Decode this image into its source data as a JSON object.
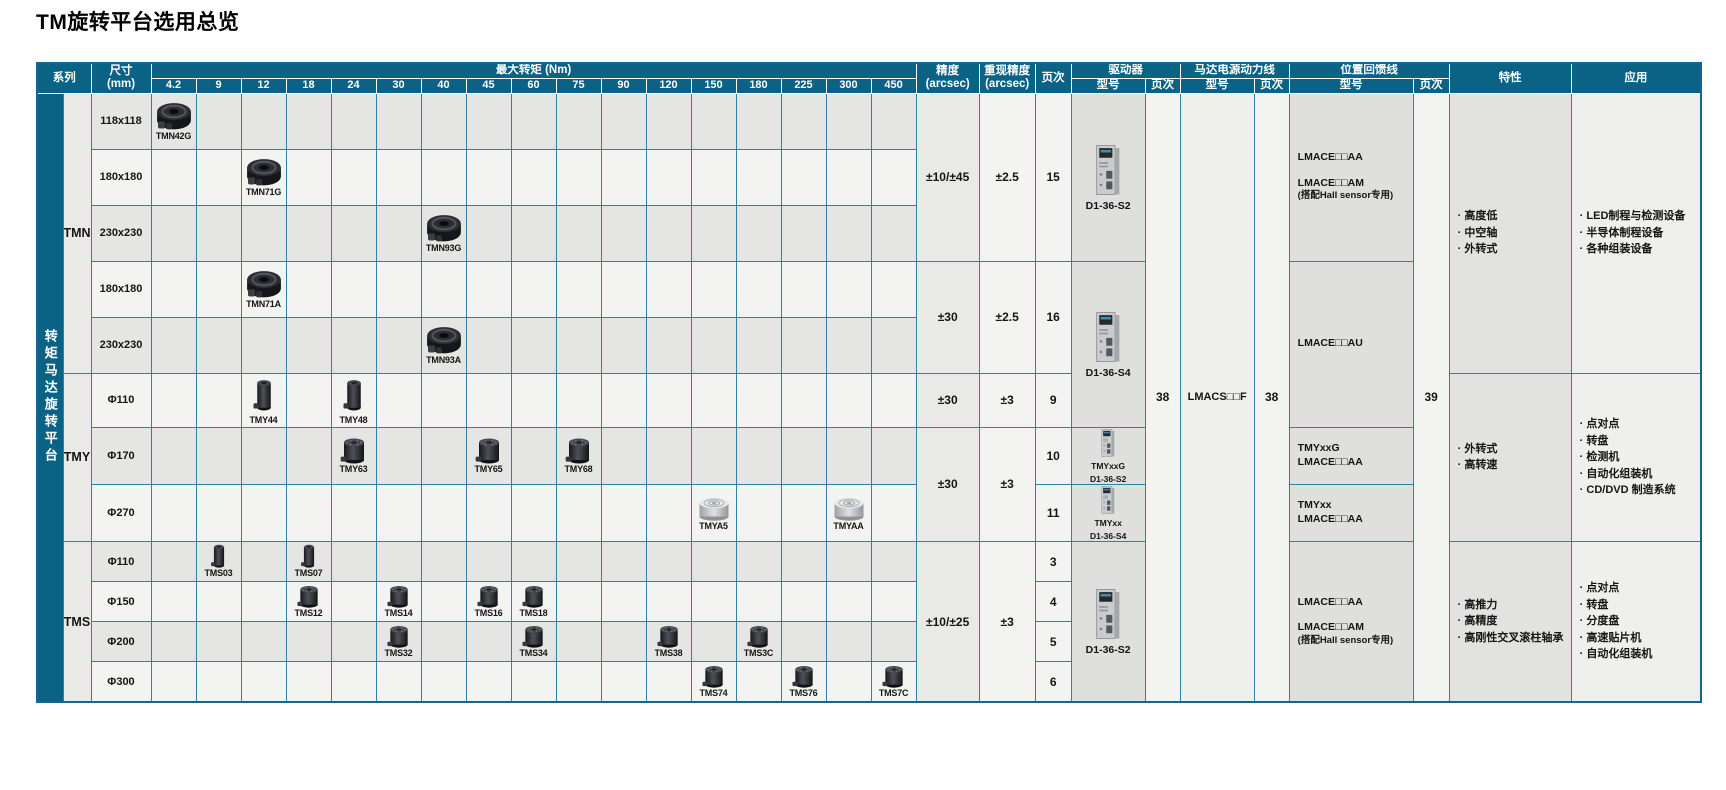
{
  "page": {
    "title": "TM旋转平台选用总览"
  },
  "colors": {
    "header_bg": "#0a6285",
    "grid_line": "#3181a6",
    "side_bar": "#0a6285"
  },
  "header": {
    "series": "系列",
    "size": "尺寸\n(mm)",
    "torque_title": "最大转矩 (Nm)",
    "torque_cols": [
      "4.2",
      "9",
      "12",
      "18",
      "24",
      "30",
      "40",
      "45",
      "60",
      "75",
      "90",
      "120",
      "150",
      "180",
      "225",
      "300",
      "450"
    ],
    "accuracy": "精度\n(arcsec)",
    "repeatability": "重现精度\n(arcsec)",
    "page_col": "页次",
    "driver": "驱动器",
    "motor_cable": "马达电源动力线",
    "feedback_cable": "位置回馈线",
    "model_col": "型号",
    "features": "特性",
    "applications": "应用"
  },
  "side_label": "转矩马达旋转平台",
  "series_labels": {
    "tmn": "TMN",
    "tmy": "TMY",
    "tms": "TMS"
  },
  "rows": [
    {
      "size": "118x118",
      "products": [
        {
          "label": "TMN42G",
          "col": "4.2",
          "type": "flat-platform"
        }
      ]
    },
    {
      "size": "180x180",
      "products": [
        {
          "label": "TMN71G",
          "col": "12",
          "type": "flat-platform"
        }
      ]
    },
    {
      "size": "230x230",
      "products": [
        {
          "label": "TMN93G",
          "col": "40",
          "type": "flat-platform"
        }
      ]
    },
    {
      "size": "180x180",
      "products": [
        {
          "label": "TMN71A",
          "col": "12",
          "type": "flat-platform"
        }
      ]
    },
    {
      "size": "230x230",
      "products": [
        {
          "label": "TMN93A",
          "col": "40",
          "type": "flat-platform"
        }
      ]
    },
    {
      "size": "Φ110",
      "products": [
        {
          "label": "TMY44",
          "col": "12",
          "type": "cylinder-tall"
        },
        {
          "label": "TMY48",
          "col": "24",
          "type": "cylinder-tall"
        }
      ]
    },
    {
      "size": "Φ170",
      "products": [
        {
          "label": "TMY63",
          "col": "24",
          "type": "cylinder-short"
        },
        {
          "label": "TMY65",
          "col": "45",
          "type": "cylinder-short"
        },
        {
          "label": "TMY68",
          "col": "75",
          "type": "cylinder-short"
        }
      ]
    },
    {
      "size": "Φ270",
      "products": [
        {
          "label": "TMYA5",
          "col": "150",
          "type": "cylinder-flat"
        },
        {
          "label": "TMYAA",
          "col": "300",
          "type": "cylinder-flat"
        }
      ]
    },
    {
      "size": "Φ110",
      "products": [
        {
          "label": "TMS03",
          "col": "9",
          "type": "cylinder-tall"
        },
        {
          "label": "TMS07",
          "col": "18",
          "type": "cylinder-tall"
        }
      ]
    },
    {
      "size": "Φ150",
      "products": [
        {
          "label": "TMS12",
          "col": "18",
          "type": "cylinder-short"
        },
        {
          "label": "TMS14",
          "col": "30",
          "type": "cylinder-short"
        },
        {
          "label": "TMS16",
          "col": "45",
          "type": "cylinder-short"
        },
        {
          "label": "TMS18",
          "col": "60",
          "type": "cylinder-short"
        }
      ]
    },
    {
      "size": "Φ200",
      "products": [
        {
          "label": "TMS32",
          "col": "30",
          "type": "cylinder-short"
        },
        {
          "label": "TMS34",
          "col": "60",
          "type": "cylinder-short"
        },
        {
          "label": "TMS38",
          "col": "120",
          "type": "cylinder-short"
        },
        {
          "label": "TMS3C",
          "col": "180",
          "type": "cylinder-short"
        }
      ]
    },
    {
      "size": "Φ300",
      "products": [
        {
          "label": "TMS74",
          "col": "150",
          "type": "cylinder-short"
        },
        {
          "label": "TMS76",
          "col": "225",
          "type": "cylinder-short"
        },
        {
          "label": "TMS7C",
          "col": "450",
          "type": "cylinder-short"
        }
      ]
    }
  ],
  "specs": {
    "g1": {
      "accuracy": "±10/±45",
      "repeatability": "±2.5",
      "page": "15"
    },
    "g2": {
      "accuracy": "±30",
      "repeatability": "±2.5",
      "page": "16"
    },
    "g3": {
      "accuracy": "±30",
      "repeatability": "±3",
      "page": "9"
    },
    "g4": {
      "accuracy": "±30",
      "repeatability": "±3",
      "page_a": "10",
      "page_b": "11"
    },
    "g5": {
      "accuracy": "±10/±25",
      "repeatability": "±3",
      "page_a": "3",
      "page_b": "4",
      "page_c": "5",
      "page_d": "6"
    }
  },
  "drivers": {
    "tmn_g": {
      "model": "D1-36-S2"
    },
    "tmn_a_tmy110": {
      "model": "D1-36-S4"
    },
    "tmy170": {
      "model_l1": "TMYxxG",
      "model_l2": "D1-36-S2"
    },
    "tmy270": {
      "model_l1": "TMYxx",
      "model_l2": "D1-36-S4"
    },
    "tms": {
      "model": "D1-36-S2"
    },
    "page": "38"
  },
  "motor_cable": {
    "model": "LMACS□□F",
    "page": "38"
  },
  "feedback_cable": {
    "g1": {
      "line1": "LMACE□□AA",
      "line2": "LMACE□□AM",
      "line3": "(搭配Hall sensor专用)"
    },
    "g2": {
      "line1": "LMACE□□AU"
    },
    "g3": {
      "line1": "TMYxxG",
      "line2": "LMACE□□AA"
    },
    "g4": {
      "line1": "TMYxx",
      "line2": "LMACE□□AA"
    },
    "g5": {
      "line1": "LMACE□□AA",
      "line2": "LMACE□□AM",
      "line3": "(搭配Hall sensor专用)"
    },
    "page": "39"
  },
  "features": {
    "tmn": [
      "高度低",
      "中空轴",
      "外转式"
    ],
    "tmy": [
      "外转式",
      "高转速"
    ],
    "tms": [
      "高推力",
      "高精度",
      "高刚性交叉滚柱轴承"
    ]
  },
  "applications": {
    "tmn": [
      "LED制程与检测设备",
      "半导体制程设备",
      "各种组装设备"
    ],
    "tmy": [
      "点对点",
      "转盘",
      "检测机",
      "自动化组装机",
      "CD/DVD 制造系统"
    ],
    "tms": [
      "点对点",
      "转盘",
      "分度盘",
      "高速贴片机",
      "自动化组装机"
    ]
  }
}
